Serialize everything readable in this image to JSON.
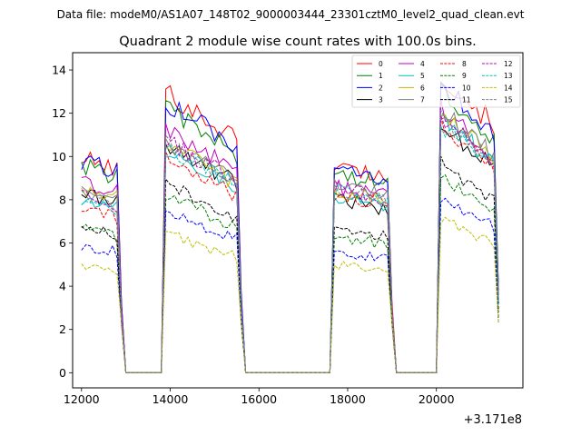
{
  "chart_data": {
    "type": "line",
    "suptitle": "Data file: modeM0/AS1A07_148T02_9000003444_23301cztM0_level2_quad_clean.evt",
    "title": "Quadrant 2 module wise count rates with 100.0s bins.",
    "xlabel": "",
    "ylabel": "",
    "x_offset_label": "+3.171e8",
    "xlim": [
      11800,
      21950
    ],
    "ylim": [
      -0.7,
      14.8
    ],
    "x_ticks": [
      12000,
      14000,
      16000,
      18000,
      20000
    ],
    "y_ticks": [
      0,
      2,
      4,
      6,
      8,
      10,
      12,
      14
    ],
    "legend_position": "upper-right",
    "legend_columns": 4,
    "segments": [
      {
        "start": 12000,
        "end": 12900
      },
      {
        "start": 13900,
        "end": 15600
      },
      {
        "start": 17700,
        "end": 19000
      },
      {
        "start": 20100,
        "end": 21400
      }
    ],
    "series": [
      {
        "name": "0",
        "color": "#ff0000",
        "dash": "solid",
        "levels": [
          9.9,
          11.3,
          9.6,
          12.0
        ]
      },
      {
        "name": "1",
        "color": "#008000",
        "dash": "solid",
        "levels": [
          9.6,
          10.6,
          9.2,
          11.4
        ]
      },
      {
        "name": "2",
        "color": "#0000ff",
        "dash": "solid",
        "levels": [
          9.8,
          10.9,
          9.3,
          11.6
        ]
      },
      {
        "name": "3",
        "color": "#000000",
        "dash": "solid",
        "levels": [
          8.3,
          9.2,
          8.0,
          10.0
        ]
      },
      {
        "name": "4",
        "color": "#bf00bf",
        "dash": "solid",
        "levels": [
          8.8,
          9.8,
          8.6,
          10.6
        ]
      },
      {
        "name": "5",
        "color": "#00bfbf",
        "dash": "solid",
        "levels": [
          8.0,
          9.0,
          8.2,
          10.2
        ]
      },
      {
        "name": "6",
        "color": "#bfbf00",
        "dash": "solid",
        "levels": [
          8.5,
          9.2,
          8.4,
          10.4
        ]
      },
      {
        "name": "7",
        "color": "#808080",
        "dash": "solid",
        "levels": [
          8.3,
          9.3,
          8.7,
          10.5
        ]
      },
      {
        "name": "8",
        "color": "#ff0000",
        "dash": "dashed",
        "levels": [
          7.6,
          8.6,
          8.3,
          10.0
        ]
      },
      {
        "name": "9",
        "color": "#008000",
        "dash": "dashed",
        "levels": [
          6.6,
          7.1,
          6.3,
          7.8
        ]
      },
      {
        "name": "10",
        "color": "#0000ff",
        "dash": "dashed",
        "levels": [
          5.9,
          6.5,
          5.6,
          7.0
        ]
      },
      {
        "name": "11",
        "color": "#000000",
        "dash": "dashed",
        "levels": [
          6.8,
          7.6,
          6.6,
          8.4
        ]
      },
      {
        "name": "12",
        "color": "#bf00bf",
        "dash": "dashed",
        "levels": [
          8.2,
          9.3,
          8.5,
          10.2
        ]
      },
      {
        "name": "13",
        "color": "#00bfbf",
        "dash": "dashed",
        "levels": [
          8.0,
          9.1,
          8.4,
          10.0
        ]
      },
      {
        "name": "14",
        "color": "#bfbf00",
        "dash": "dashed",
        "levels": [
          5.0,
          5.6,
          5.0,
          6.2
        ]
      },
      {
        "name": "15",
        "color": "#808080",
        "dash": "dashed",
        "levels": [
          8.1,
          9.2,
          8.6,
          10.3
        ]
      }
    ]
  }
}
